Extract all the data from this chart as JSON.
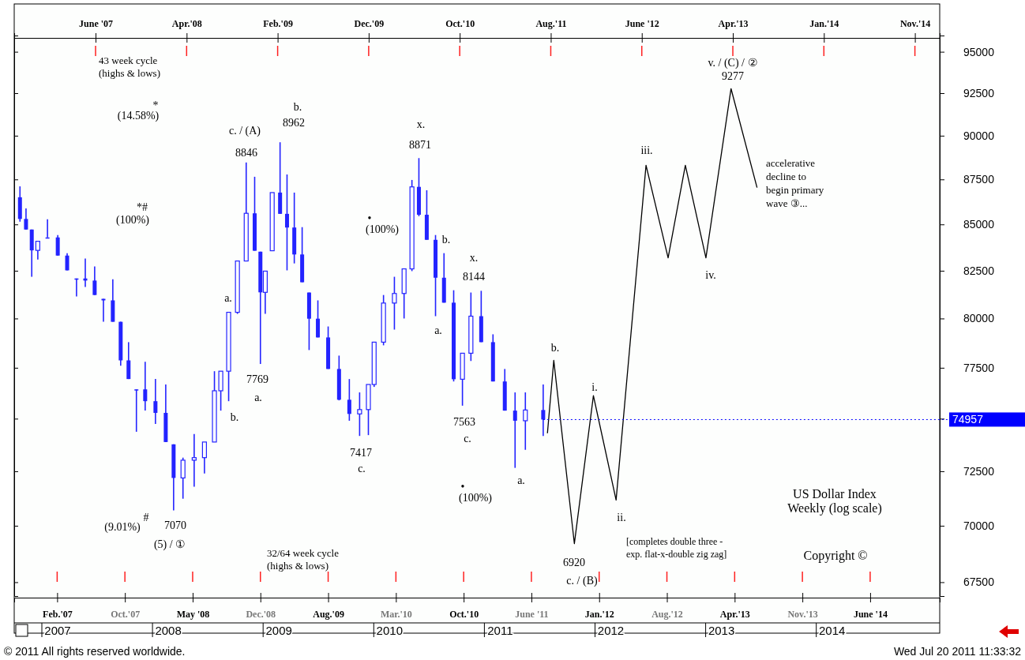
{
  "chart_data": {
    "type": "candlestick",
    "title": "US Dollar Index",
    "subtitle": "Weekly (log scale)",
    "color": "#2323ff",
    "log": true,
    "xlim": [
      "2006-09-30",
      "2015-02-15"
    ],
    "ylim": [
      66900,
      96000
    ],
    "yticks": [
      67500,
      70000,
      72500,
      {
        "value": 75000,
        "label": null
      },
      77500,
      80000,
      82500,
      85000,
      87500,
      90000,
      92500,
      95000
    ],
    "xticks": [
      {
        "value": "2007-02-19",
        "label": "Feb.'07"
      },
      {
        "value": "2007-10-01",
        "label": "Oct.'07"
      },
      {
        "value": "2008-05-12",
        "label": "May '08"
      },
      {
        "value": "2008-12-22",
        "label": "Dec.'08"
      },
      {
        "value": "2009-08-03",
        "label": "Aug.'09"
      },
      {
        "value": "2010-03-15",
        "label": "Mar.'10"
      },
      {
        "value": "2010-10-25",
        "label": "Oct.'10"
      },
      {
        "value": "2011-06-06",
        "label": "June '11"
      },
      {
        "value": "2012-01-16",
        "label": "Jan.'12"
      },
      {
        "value": "2012-08-27",
        "label": "Aug.'12"
      },
      {
        "value": "2013-04-08",
        "label": "Apr.'13"
      },
      {
        "value": "2013-11-18",
        "label": "Nov.'13"
      },
      {
        "value": "2014-06-30",
        "label": "June '14"
      }
    ],
    "x2lim": [
      "2006-09-30",
      "2015-02-15"
    ],
    "x2ticks": [
      {
        "value": "2007-06-26",
        "label": "June '07"
      },
      {
        "value": "2008-04-22",
        "label": "Apr.'08"
      },
      {
        "value": "2009-02-17",
        "label": "Feb.'09"
      },
      {
        "value": "2009-12-15",
        "label": "Dec.'09"
      },
      {
        "value": "2010-10-12",
        "label": "Oct.'10"
      },
      {
        "value": "2011-08-09",
        "label": "Aug.'11"
      },
      {
        "value": "2012-06-05",
        "label": "June '12"
      },
      {
        "value": "2013-04-02",
        "label": "Apr.'13"
      },
      {
        "value": "2014-01-28",
        "label": "Jan.'14"
      },
      {
        "value": "2014-11-25",
        "label": "Nov.'14"
      }
    ],
    "x": [
      "2006-10-19",
      "2006-11-08",
      "2006-11-27",
      "2006-12-17",
      "2007-01-18",
      "2007-02-21",
      "2007-03-24",
      "2007-04-24",
      "2007-05-23",
      "2007-06-23",
      "2007-07-22",
      "2007-08-22",
      "2007-09-17",
      "2007-10-13",
      "2007-11-08",
      "2007-12-07",
      "2008-01-10",
      "2008-02-13",
      "2008-03-10",
      "2008-04-10",
      "2008-05-17",
      "2008-06-20",
      "2008-07-23",
      "2008-08-13",
      "2008-09-08",
      "2008-10-07",
      "2008-11-05",
      "2008-12-03",
      "2008-12-22",
      "2009-01-07",
      "2009-01-30",
      "2009-02-25",
      "2009-03-20",
      "2009-04-13",
      "2009-05-09",
      "2009-06-01",
      "2009-06-30",
      "2009-08-03",
      "2009-09-08",
      "2009-10-12",
      "2009-11-15",
      "2009-12-14",
      "2010-01-02",
      "2010-02-02",
      "2010-03-10",
      "2010-04-11",
      "2010-05-07",
      "2010-05-30",
      "2010-06-25",
      "2010-07-24",
      "2010-08-21",
      "2010-09-22",
      "2010-10-21",
      "2010-11-18",
      "2010-12-22",
      "2011-01-30",
      "2011-03-10",
      "2011-04-13",
      "2011-05-17",
      "2011-07-15"
    ],
    "ohlc": [
      [
        86500,
        87110,
        85150,
        85300
      ],
      [
        85300,
        85880,
        84720,
        84720
      ],
      [
        84720,
        84720,
        82180,
        83590
      ],
      [
        83590,
        84080,
        83100,
        84080
      ],
      [
        84290,
        85280,
        84290,
        84290
      ],
      [
        84290,
        84420,
        83310,
        83310
      ],
      [
        83310,
        83440,
        82520,
        82520
      ],
      [
        82090,
        82090,
        81140,
        82090
      ],
      [
        82090,
        83150,
        81640,
        81980
      ],
      [
        81980,
        82730,
        81220,
        81220
      ],
      [
        81020,
        81020,
        79830,
        80940
      ],
      [
        80940,
        82050,
        79830,
        79830
      ],
      [
        79830,
        79830,
        77600,
        77870
      ],
      [
        77870,
        78790,
        76940,
        76940
      ],
      [
        76430,
        76430,
        74370,
        76430
      ],
      [
        76430,
        77800,
        75390,
        75850
      ],
      [
        75850,
        76940,
        74750,
        75280
      ],
      [
        75280,
        76670,
        73880,
        73880
      ],
      [
        73770,
        73770,
        70700,
        72190
      ],
      [
        72190,
        73140,
        71230,
        73020
      ],
      [
        73020,
        74260,
        71780,
        73140
      ],
      [
        73140,
        73880,
        72400,
        73880
      ],
      [
        73880,
        77330,
        73880,
        76360
      ],
      [
        76360,
        77330,
        75390,
        77330
      ],
      [
        77330,
        80320,
        75850,
        80320
      ],
      [
        80320,
        83020,
        80240,
        83020
      ],
      [
        83020,
        88460,
        83020,
        85610
      ],
      [
        85610,
        87650,
        83570,
        83570
      ],
      [
        83520,
        83520,
        77690,
        81360
      ],
      [
        81360,
        82480,
        80240,
        82480
      ],
      [
        83570,
        86760,
        83570,
        86760
      ],
      [
        86760,
        89620,
        85580,
        85580
      ],
      [
        85580,
        87780,
        82520,
        84830
      ],
      [
        84830,
        86760,
        82890,
        83370
      ],
      [
        83370,
        84850,
        81890,
        81890
      ],
      [
        81350,
        81350,
        78390,
        79990
      ],
      [
        79990,
        80940,
        79030,
        79030
      ],
      [
        79030,
        79590,
        77440,
        77440
      ],
      [
        77440,
        78110,
        75890,
        75920
      ],
      [
        75920,
        76940,
        74900,
        75230
      ],
      [
        75230,
        76280,
        74170,
        75440
      ],
      [
        75440,
        76670,
        74210,
        76670
      ],
      [
        76670,
        78790,
        76550,
        78790
      ],
      [
        78790,
        81220,
        78630,
        80800
      ],
      [
        80800,
        82180,
        79430,
        81300
      ],
      [
        81300,
        82600,
        80000,
        82600
      ],
      [
        82600,
        87470,
        82480,
        87080
      ],
      [
        87080,
        88710,
        85450,
        85530
      ],
      [
        85530,
        86890,
        84160,
        84160
      ],
      [
        84160,
        84420,
        80120,
        82130
      ],
      [
        82130,
        83440,
        80820,
        80820
      ],
      [
        80820,
        81470,
        76820,
        76930
      ],
      [
        76930,
        78230,
        75630,
        78230
      ],
      [
        78230,
        81350,
        77840,
        80120
      ],
      [
        80120,
        81440,
        78790,
        78790
      ],
      [
        78790,
        79190,
        76820,
        76820
      ],
      [
        76820,
        77440,
        75390,
        75390
      ],
      [
        75390,
        76280,
        72660,
        74900
      ],
      [
        74900,
        76280,
        73510,
        75420
      ],
      [
        75420,
        76670,
        74170,
        74957
      ]
    ],
    "series": [
      {
        "type": "line",
        "color": "#000000",
        "x": [
          "2011-07-29",
          "2011-08-19",
          "2011-10-26",
          "2011-12-28",
          "2012-03-12",
          "2012-06-19",
          "2012-08-31",
          "2012-10-27",
          "2013-01-03",
          "2013-03-27",
          "2013-06-21"
        ],
        "values": [
          74300,
          77870,
          69200,
          76120,
          71170,
          88300,
          83190,
          88300,
          83190,
          92770,
          87040
        ]
      }
    ],
    "ref_lines": [
      {
        "axis": "y",
        "value": 74957,
        "label": "74957",
        "color": "#0000ff"
      }
    ],
    "annotations": [
      "43 week cycle\n(highs & lows)",
      "32/64 week cycle\n(highs & lows)",
      "[completes double three -\nexp. flat-x-double zig zag]",
      "accelerative\ndecline to\nbegin primary\nwave ③...",
      "Copyright ©",
      "© 2011 All rights reserved worldwide.",
      "Wed Jul 20 2011 11:33:32",
      "*",
      "(14.58%)",
      "*#",
      "(100%)",
      "#",
      "(9.01%)",
      "7070",
      "(5) / ①",
      "c. / (A)",
      "8846",
      "b.",
      "8962",
      "a.",
      "b.",
      "7769",
      "a.",
      "7417",
      "c.",
      "x.",
      "8871",
      "•",
      "(100%)",
      "b.",
      "a.",
      "x.",
      "8144",
      "7563",
      "c.",
      "a.",
      "•",
      "(100%)",
      "b.",
      "i.",
      "ii.",
      "iii.",
      "iv.",
      "v. / (C) / ②",
      "9277",
      "6920",
      "c. / (B)",
      "2007",
      "2008",
      "2009",
      "2010",
      "2011",
      "2012",
      "2013",
      "2014"
    ]
  }
}
